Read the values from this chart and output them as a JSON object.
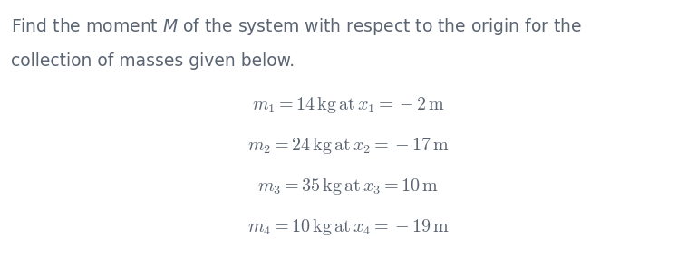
{
  "intro_line1": "Find the moment $\\mathit{M}$ of the system with respect to the origin for the",
  "intro_line2": "collection of masses given below.",
  "lines": [
    "$m_1 = 14\\,\\mathrm{kg\\,at}\\,x_1 = -2\\,\\mathrm{m}$",
    "$m_2 = 24\\,\\mathrm{kg\\,at}\\,x_2 = -17\\,\\mathrm{m}$",
    "$m_3 = 35\\,\\mathrm{kg\\,at}\\,x_3 = 10\\,\\mathrm{m}$",
    "$m_4 = 10\\,\\mathrm{kg\\,at}\\,x_4 = -19\\,\\mathrm{m}$"
  ],
  "text_color": "#5a6472",
  "bg_color": "#ffffff",
  "intro_fontsize": 13.5,
  "line_fontsize": 14.5,
  "fig_width": 7.69,
  "fig_height": 2.95,
  "dpi": 100
}
